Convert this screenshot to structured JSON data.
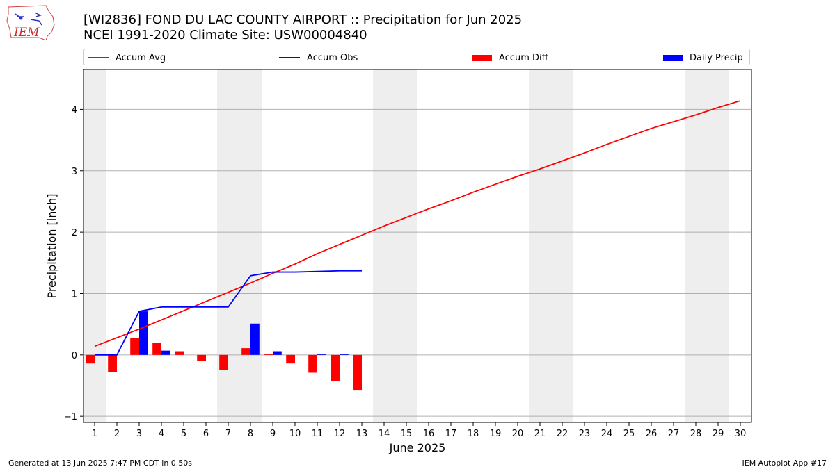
{
  "header": {
    "title_line1": "[WI2836] FOND DU LAC COUNTY AIRPORT :: Precipitation for Jun 2025",
    "title_line2": "NCEI 1991-2020 Climate Site: USW00004840",
    "logo_text": "IEM"
  },
  "footer": {
    "left": "Generated at 13 Jun 2025 7:47 PM CDT in 0.50s",
    "right": "IEM Autoplot App #17"
  },
  "legend": [
    {
      "label": "Accum Avg",
      "kind": "line",
      "color": "#ff0000"
    },
    {
      "label": "Accum Obs",
      "kind": "line",
      "color": "#0000ff"
    },
    {
      "label": "Accum Diff",
      "kind": "bar",
      "color": "#ff0000"
    },
    {
      "label": "Daily Precip",
      "kind": "bar",
      "color": "#0000ff"
    }
  ],
  "chart_data": {
    "type": "bar",
    "xlabel": "June 2025",
    "ylabel": "Precipitation [inch]",
    "xlim": [
      0.5,
      30.5
    ],
    "ylim": [
      -1.1,
      4.65
    ],
    "yticks": [
      -1,
      0,
      1,
      2,
      3,
      4
    ],
    "xticks": [
      1,
      2,
      3,
      4,
      5,
      6,
      7,
      8,
      9,
      10,
      11,
      12,
      13,
      14,
      15,
      16,
      17,
      18,
      19,
      20,
      21,
      22,
      23,
      24,
      25,
      26,
      27,
      28,
      29,
      30
    ],
    "grid": "y",
    "legend_position": "top",
    "weekend_shading": [
      [
        0.5,
        1.5
      ],
      [
        6.5,
        8.5
      ],
      [
        13.5,
        15.5
      ],
      [
        20.5,
        22.5
      ],
      [
        27.5,
        29.5
      ]
    ],
    "shade_color": "#eeeeee",
    "days": [
      1,
      2,
      3,
      4,
      5,
      6,
      7,
      8,
      9,
      10,
      11,
      12,
      13,
      14,
      15,
      16,
      17,
      18,
      19,
      20,
      21,
      22,
      23,
      24,
      25,
      26,
      27,
      28,
      29,
      30
    ],
    "series": [
      {
        "name": "Accum Avg",
        "kind": "line",
        "color": "#ff0000",
        "x": [
          1,
          2,
          3,
          4,
          5,
          6,
          7,
          8,
          9,
          10,
          11,
          12,
          13,
          14,
          15,
          16,
          17,
          18,
          19,
          20,
          21,
          22,
          23,
          24,
          25,
          26,
          27,
          28,
          29,
          30
        ],
        "values": [
          0.14,
          0.28,
          0.42,
          0.57,
          0.72,
          0.87,
          1.02,
          1.17,
          1.33,
          1.48,
          1.65,
          1.8,
          1.95,
          2.1,
          2.24,
          2.38,
          2.51,
          2.65,
          2.78,
          2.91,
          3.03,
          3.16,
          3.29,
          3.43,
          3.56,
          3.69,
          3.8,
          3.91,
          4.03,
          4.14
        ]
      },
      {
        "name": "Accum Obs",
        "kind": "line",
        "color": "#0000ff",
        "x": [
          1,
          2,
          3,
          4,
          5,
          6,
          7,
          8,
          9,
          10,
          11,
          12,
          13
        ],
        "values": [
          0.0,
          0.0,
          0.71,
          0.78,
          0.78,
          0.78,
          0.78,
          1.29,
          1.35,
          1.35,
          1.36,
          1.37,
          1.37
        ]
      },
      {
        "name": "Accum Diff",
        "kind": "bar",
        "color": "#ff0000",
        "x": [
          1,
          2,
          3,
          4,
          5,
          6,
          7,
          8,
          9,
          10,
          11,
          12,
          13
        ],
        "values": [
          -0.14,
          -0.28,
          0.28,
          0.2,
          0.06,
          -0.1,
          -0.25,
          0.11,
          0.01,
          -0.14,
          -0.29,
          -0.43,
          -0.58
        ]
      },
      {
        "name": "Daily Precip",
        "kind": "bar",
        "color": "#0000ff",
        "x": [
          1,
          2,
          3,
          4,
          5,
          6,
          7,
          8,
          9,
          10,
          11,
          12,
          13
        ],
        "values": [
          0.0,
          0.0,
          0.71,
          0.07,
          0.0,
          0.0,
          0.0,
          0.51,
          0.06,
          0.0,
          0.01,
          0.01,
          0.0
        ]
      }
    ]
  }
}
